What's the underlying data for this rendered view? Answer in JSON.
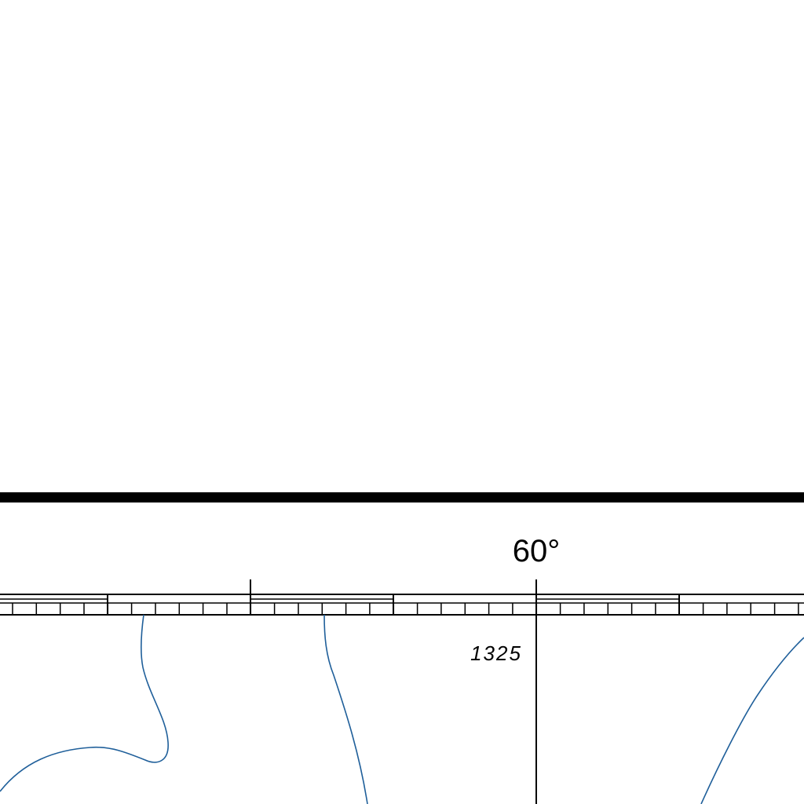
{
  "map": {
    "longitude_label": "60°",
    "depth_label": "1325",
    "colors": {
      "background": "#ffffff",
      "border": "#000000",
      "contour": "#1f5f9a"
    }
  }
}
